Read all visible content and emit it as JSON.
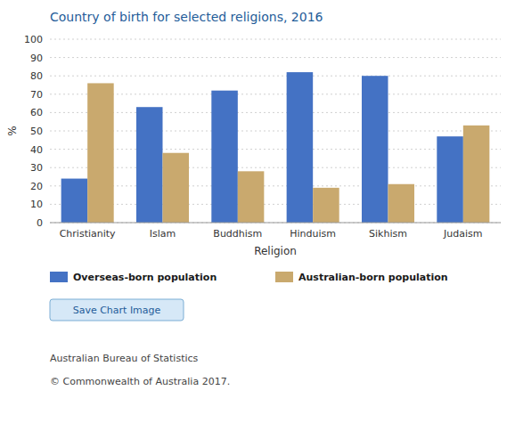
{
  "chart_data": {
    "type": "bar",
    "title": "Country of birth for selected religions, 2016",
    "x_label": "Religion",
    "y_label": "%",
    "categories": [
      "Christianity",
      "Islam",
      "Buddhism",
      "Hinduism",
      "Sikhism",
      "Judaism"
    ],
    "series": [
      {
        "name": "Overseas-born population",
        "color": "#4472C4",
        "values": [
          24,
          63,
          72,
          82,
          80,
          47
        ]
      },
      {
        "name": "Australian-born population",
        "color": "#C9A96E",
        "values": [
          76,
          38,
          28,
          19,
          21,
          53
        ]
      }
    ],
    "ylim": [
      0,
      100
    ],
    "yticks": [
      0,
      10,
      20,
      30,
      40,
      50,
      60,
      70,
      80,
      90,
      100
    ],
    "grid": true,
    "legend": "bottom",
    "button_label": "Save Chart Image",
    "annotations": [
      "Australian Bureau of Statistics",
      "© Commonwealth of Australia 2017."
    ]
  }
}
